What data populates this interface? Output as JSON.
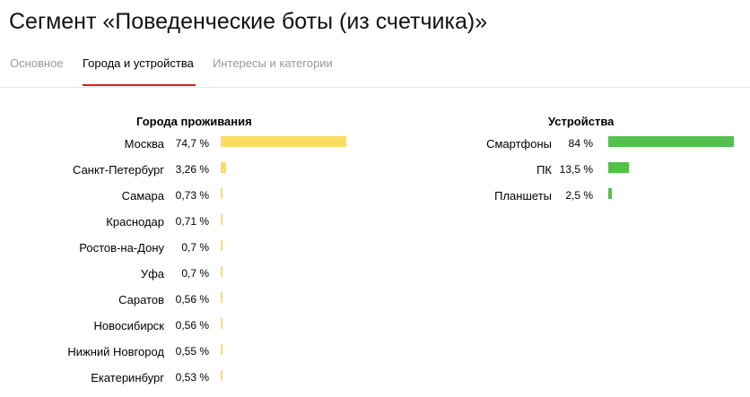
{
  "header": {
    "title": "Сегмент «Поведенческие боты (из счетчика)»"
  },
  "tabs": [
    {
      "label": "Основное",
      "active": false
    },
    {
      "label": "Города и устройства",
      "active": true
    },
    {
      "label": "Интересы и категории",
      "active": false
    }
  ],
  "colors": {
    "cities_bar": "#fddc63",
    "devices_bar": "#52c14d",
    "active_tab_underline": "#d81d1d"
  },
  "cities": {
    "title": "Города проживания",
    "rows": [
      {
        "name": "Москва",
        "pct_label": "74,7 %",
        "value": 74.7
      },
      {
        "name": "Санкт-Петербург",
        "pct_label": "3,26 %",
        "value": 3.26
      },
      {
        "name": "Самара",
        "pct_label": "0,73 %",
        "value": 0.73
      },
      {
        "name": "Краснодар",
        "pct_label": "0,71 %",
        "value": 0.71
      },
      {
        "name": "Ростов-на-Дону",
        "pct_label": "0,7 %",
        "value": 0.7
      },
      {
        "name": "Уфа",
        "pct_label": "0,7 %",
        "value": 0.7
      },
      {
        "name": "Саратов",
        "pct_label": "0,56 %",
        "value": 0.56
      },
      {
        "name": "Новосибирск",
        "pct_label": "0,56 %",
        "value": 0.56
      },
      {
        "name": "Нижний Новгород",
        "pct_label": "0,55 %",
        "value": 0.55
      },
      {
        "name": "Екатеринбург",
        "pct_label": "0,53 %",
        "value": 0.53
      }
    ]
  },
  "devices": {
    "title": "Устройства",
    "rows": [
      {
        "name": "Смартфоны",
        "pct_label": "84 %",
        "value": 84
      },
      {
        "name": "ПК",
        "pct_label": "13,5 %",
        "value": 13.5
      },
      {
        "name": "Планшеты",
        "pct_label": "2,5 %",
        "value": 2.5
      }
    ]
  }
}
